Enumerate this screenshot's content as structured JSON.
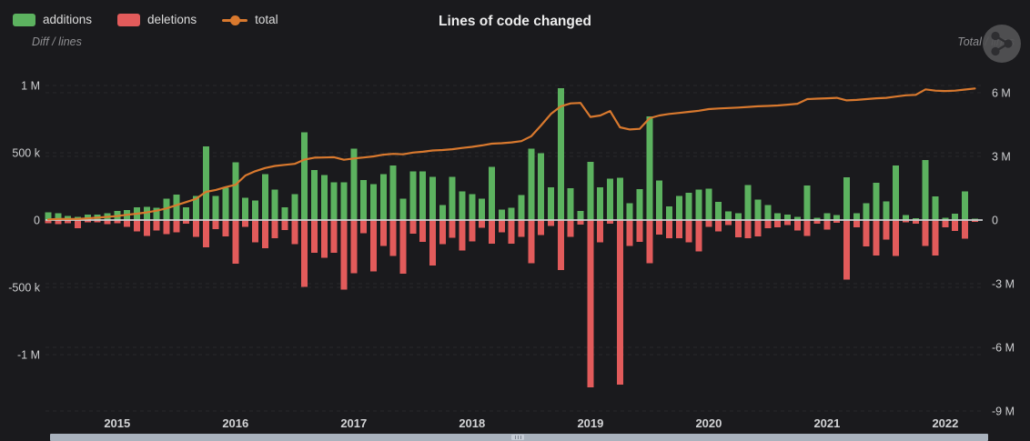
{
  "header": {
    "title": "Lines of code changed"
  },
  "legend": {
    "items": [
      {
        "label": "additions",
        "color": "#5cb25f",
        "marker": "bar-swatch"
      },
      {
        "label": "deletions",
        "color": "#e25b5b",
        "marker": "bar-swatch"
      },
      {
        "label": "total",
        "color": "#d9792e",
        "marker": "line-dot"
      }
    ]
  },
  "toolbox": {
    "icon": "share-icon"
  },
  "colors": {
    "background": "#1a1a1d",
    "zero_line": "#caccce",
    "gridline": "#28282c",
    "axis_text": "#cdced0",
    "scrollbar": "#a9b2bd"
  },
  "chart_data": {
    "type": "bar",
    "title": "Lines of code changed",
    "subtitle": "",
    "legend_position": "top-left",
    "grid": true,
    "left_axis": {
      "label": "Diff / lines",
      "ticks": [
        "1 M",
        "500 k",
        "0",
        "-500 k",
        "-1 M"
      ],
      "tick_values": [
        1000000,
        500000,
        0,
        -500000,
        -1000000
      ],
      "range": [
        -1500000,
        1350000
      ]
    },
    "right_axis": {
      "label": "Total / lines",
      "ticks": [
        "6 M",
        "3 M",
        "0",
        "-3 M",
        "-6 M",
        "-9 M"
      ],
      "tick_values": [
        6000000,
        3000000,
        0,
        -3000000,
        -6000000,
        -9000000
      ],
      "range": [
        -9700000,
        6900000
      ]
    },
    "x_ticks": [
      "2015",
      "2016",
      "2017",
      "2018",
      "2019",
      "2020",
      "2021",
      "2022"
    ],
    "x": [
      "2014-06",
      "2014-07",
      "2014-08",
      "2014-09",
      "2014-10",
      "2014-11",
      "2014-12",
      "2015-01",
      "2015-02",
      "2015-03",
      "2015-04",
      "2015-05",
      "2015-06",
      "2015-07",
      "2015-08",
      "2015-09",
      "2015-10",
      "2015-11",
      "2015-12",
      "2016-01",
      "2016-02",
      "2016-03",
      "2016-04",
      "2016-05",
      "2016-06",
      "2016-07",
      "2016-08",
      "2016-09",
      "2016-10",
      "2016-11",
      "2016-12",
      "2017-01",
      "2017-02",
      "2017-03",
      "2017-04",
      "2017-05",
      "2017-06",
      "2017-07",
      "2017-08",
      "2017-09",
      "2017-10",
      "2017-11",
      "2017-12",
      "2018-01",
      "2018-02",
      "2018-03",
      "2018-04",
      "2018-05",
      "2018-06",
      "2018-07",
      "2018-08",
      "2018-09",
      "2018-10",
      "2018-11",
      "2018-12",
      "2019-01",
      "2019-02",
      "2019-03",
      "2019-04",
      "2019-05",
      "2019-06",
      "2019-07",
      "2019-08",
      "2019-09",
      "2019-10",
      "2019-11",
      "2019-12",
      "2020-01",
      "2020-02",
      "2020-03",
      "2020-04",
      "2020-05",
      "2020-06",
      "2020-07",
      "2020-08",
      "2020-09",
      "2020-10",
      "2020-11",
      "2020-12",
      "2021-01",
      "2021-02",
      "2021-03",
      "2021-04",
      "2021-05",
      "2021-06",
      "2021-07",
      "2021-08",
      "2021-09",
      "2021-10",
      "2021-11",
      "2021-12",
      "2022-01",
      "2022-02",
      "2022-03",
      "2022-04"
    ],
    "series": [
      {
        "name": "additions",
        "type": "bar",
        "axis": "left",
        "color": "#5cb25f",
        "values": [
          56000,
          52000,
          29000,
          25000,
          40000,
          40000,
          49000,
          67000,
          76000,
          94000,
          99000,
          92000,
          160000,
          189000,
          94000,
          180000,
          547000,
          180000,
          239000,
          430000,
          167000,
          144000,
          340000,
          225000,
          95000,
          191000,
          652000,
          371000,
          333000,
          281000,
          281000,
          529000,
          297000,
          266000,
          342000,
          405000,
          158000,
          360000,
          360000,
          320000,
          113000,
          320000,
          214000,
          191000,
          158000,
          394000,
          79000,
          90000,
          185000,
          529000,
          495000,
          243000,
          979000,
          236000,
          68000,
          432000,
          243000,
          308000,
          315000,
          124000,
          230000,
          770000,
          293000,
          101000,
          180000,
          203000,
          225000,
          232000,
          135000,
          63000,
          52000,
          261000,
          153000,
          113000,
          52000,
          41000,
          23000,
          257000,
          18000,
          52000,
          36000,
          317000,
          52000,
          126000,
          277000,
          137000,
          407000,
          36000,
          14000,
          446000,
          176000,
          18000,
          47000,
          212000,
          9000
        ]
      },
      {
        "name": "deletions",
        "type": "bar",
        "axis": "left",
        "color": "#e25b5b",
        "values": [
          -22000,
          -29000,
          -25000,
          -61000,
          -16000,
          -18000,
          -31000,
          -25000,
          -49000,
          -83000,
          -117000,
          -79000,
          -106000,
          -90000,
          -27000,
          -124000,
          -202000,
          -68000,
          -122000,
          -324000,
          -52000,
          -167000,
          -210000,
          -135000,
          -74000,
          -180000,
          -495000,
          -243000,
          -281000,
          -243000,
          -518000,
          -394000,
          -97000,
          -383000,
          -191000,
          -266000,
          -400000,
          -101000,
          -162000,
          -338000,
          -180000,
          -131000,
          -225000,
          -158000,
          -56000,
          -176000,
          -90000,
          -176000,
          -124000,
          -320000,
          -112000,
          -45000,
          -371000,
          -124000,
          -34000,
          -1243000,
          -164000,
          -27000,
          -1223000,
          -191000,
          -162000,
          -322000,
          -108000,
          -135000,
          -135000,
          -166000,
          -234000,
          -50000,
          -83000,
          -38000,
          -128000,
          -135000,
          -122000,
          -61000,
          -54000,
          -38000,
          -77000,
          -117000,
          -27000,
          -72000,
          -20000,
          -443000,
          -54000,
          -196000,
          -263000,
          -144000,
          -268000,
          -16000,
          -27000,
          -194000,
          -263000,
          -54000,
          -81000,
          -137000,
          -14000
        ]
      },
      {
        "name": "total",
        "type": "line",
        "axis": "right",
        "color": "#d9792e",
        "values": [
          30000,
          50000,
          50000,
          50000,
          80000,
          110000,
          150000,
          190000,
          250000,
          300000,
          360000,
          440000,
          550000,
          700000,
          850000,
          1000000,
          1330000,
          1420000,
          1550000,
          1660000,
          2100000,
          2300000,
          2450000,
          2550000,
          2600000,
          2650000,
          2850000,
          2940000,
          2950000,
          2960000,
          2840000,
          2900000,
          2950000,
          3000000,
          3080000,
          3120000,
          3100000,
          3180000,
          3220000,
          3280000,
          3300000,
          3340000,
          3400000,
          3450000,
          3520000,
          3600000,
          3620000,
          3660000,
          3720000,
          3950000,
          4460000,
          5000000,
          5360000,
          5500000,
          5520000,
          4860000,
          4930000,
          5140000,
          4370000,
          4270000,
          4300000,
          4800000,
          4930000,
          5000000,
          5050000,
          5100000,
          5150000,
          5230000,
          5260000,
          5280000,
          5300000,
          5330000,
          5360000,
          5380000,
          5400000,
          5440000,
          5480000,
          5700000,
          5720000,
          5740000,
          5760000,
          5640000,
          5660000,
          5700000,
          5740000,
          5760000,
          5820000,
          5880000,
          5900000,
          6160000,
          6100000,
          6080000,
          6100000,
          6150000,
          6200000
        ]
      }
    ]
  }
}
